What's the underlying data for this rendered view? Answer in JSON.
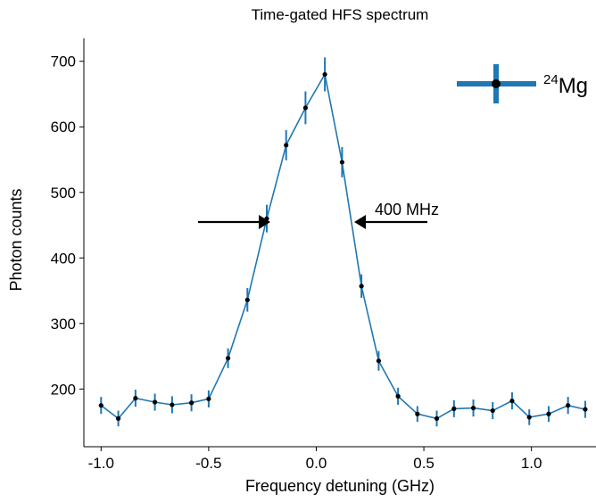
{
  "chart_data": {
    "type": "line",
    "title": "Time-gated HFS spectrum",
    "xlabel": "Frequency detuning (GHz)",
    "ylabel": "Photon counts",
    "xlim": [
      -1.08,
      1.3
    ],
    "ylim": [
      112,
      735
    ],
    "xticks": [
      -1.0,
      -0.5,
      0.0,
      0.5,
      1.0
    ],
    "xtick_labels": [
      "-1.0",
      "-0.5",
      "0.0",
      "0.5",
      "1.0"
    ],
    "yticks": [
      200,
      300,
      400,
      500,
      600,
      700
    ],
    "ytick_labels": [
      "200",
      "300",
      "400",
      "500",
      "600",
      "700"
    ],
    "grid": false,
    "legend_position": "top-right",
    "series": [
      {
        "name": "24Mg",
        "color": "#1f77b4",
        "marker_color": "#000000",
        "x": [
          -1.0,
          -0.92,
          -0.84,
          -0.75,
          -0.67,
          -0.58,
          -0.5,
          -0.41,
          -0.32,
          -0.23,
          -0.14,
          -0.05,
          0.04,
          0.12,
          0.21,
          0.29,
          0.38,
          0.47,
          0.56,
          0.64,
          0.73,
          0.82,
          0.91,
          0.99,
          1.08,
          1.17,
          1.25
        ],
        "y": [
          175,
          155,
          186,
          180,
          176,
          179,
          185,
          247,
          336,
          460,
          572,
          629,
          680,
          546,
          357,
          243,
          189,
          162,
          155,
          170,
          171,
          167,
          182,
          157,
          162,
          175,
          169
        ],
        "yerr": [
          13,
          12,
          13,
          13,
          13,
          13,
          13,
          15,
          18,
          21,
          23,
          25,
          26,
          23,
          18,
          15,
          13,
          12,
          12,
          13,
          13,
          13,
          13,
          12,
          12,
          13,
          13
        ]
      }
    ],
    "legend": {
      "label_sup": "24",
      "label_main": "Mg"
    },
    "annotations": [
      {
        "text": "400 MHz"
      }
    ]
  }
}
